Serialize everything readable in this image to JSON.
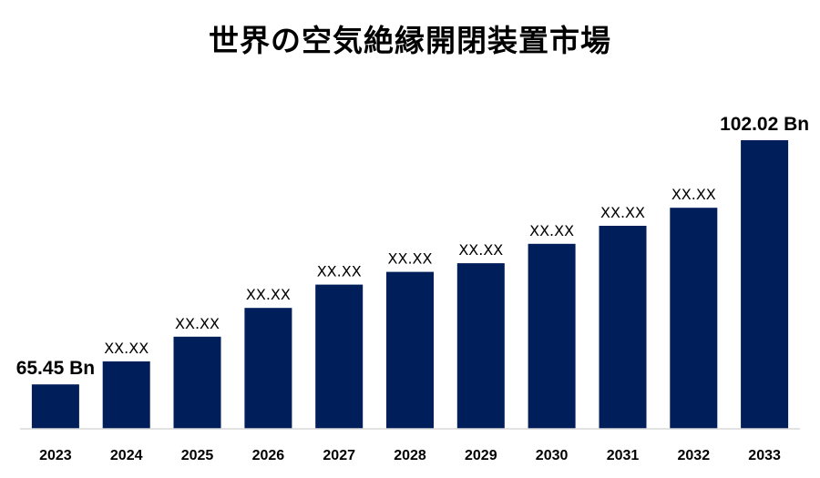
{
  "chart_data": {
    "type": "bar",
    "title": "世界の空気絶縁開閉装置市場",
    "xlabel": "",
    "ylabel": "",
    "categories": [
      "2023",
      "2024",
      "2025",
      "2026",
      "2027",
      "2028",
      "2029",
      "2030",
      "2031",
      "2032",
      "2033"
    ],
    "values": [
      65.45,
      68.9,
      72.6,
      76.9,
      80.4,
      82.3,
      83.6,
      86.5,
      89.2,
      91.9,
      102.02
    ],
    "data_labels": [
      "65.45 Bn",
      "XX.XX",
      "XX.XX",
      "XX.XX",
      "XX.XX",
      "XX.XX",
      "XX.XX",
      "XX.XX",
      "XX.XX",
      "XX.XX",
      "102.02 Bn"
    ],
    "ylim": [
      58.8,
      102.02
    ],
    "grid": false,
    "legend": "none",
    "bar_color": "#001E5A",
    "baseline_color": "#D9D9D9"
  }
}
